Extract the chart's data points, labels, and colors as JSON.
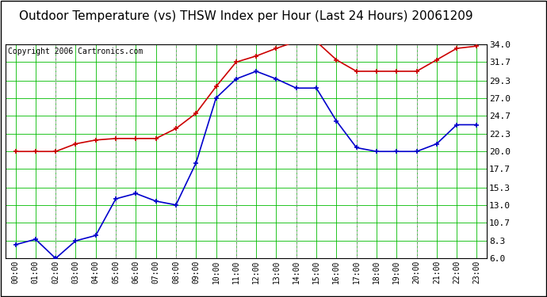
{
  "title": "Outdoor Temperature (vs) THSW Index per Hour (Last 24 Hours) 20061209",
  "copyright": "Copyright 2006 Cartronics.com",
  "hours": [
    "00:00",
    "01:00",
    "02:00",
    "03:00",
    "04:00",
    "05:00",
    "06:00",
    "07:00",
    "08:00",
    "09:00",
    "10:00",
    "11:00",
    "12:00",
    "13:00",
    "14:00",
    "15:00",
    "16:00",
    "17:00",
    "18:00",
    "19:00",
    "20:00",
    "21:00",
    "22:00",
    "23:00"
  ],
  "temp_red": [
    20.0,
    20.0,
    20.0,
    21.0,
    21.5,
    21.7,
    21.7,
    21.7,
    23.0,
    25.0,
    28.5,
    31.7,
    32.5,
    33.5,
    34.4,
    34.4,
    32.0,
    30.5,
    30.5,
    30.5,
    30.5,
    32.0,
    33.5,
    33.8
  ],
  "temp_blue": [
    7.8,
    8.5,
    6.0,
    8.3,
    9.0,
    13.8,
    14.5,
    13.5,
    13.0,
    18.5,
    27.0,
    29.5,
    30.5,
    29.5,
    28.3,
    28.3,
    24.0,
    20.5,
    20.0,
    20.0,
    20.0,
    21.0,
    23.5,
    23.5
  ],
  "red_color": "#cc0000",
  "blue_color": "#0000cc",
  "green_grid_color": "#00bb00",
  "dashed_grid_color": "#aaaaaa",
  "background_color": "#ffffff",
  "border_color": "#000000",
  "yticks": [
    6.0,
    8.3,
    10.7,
    13.0,
    15.3,
    17.7,
    20.0,
    22.3,
    24.7,
    27.0,
    29.3,
    31.7,
    34.0
  ],
  "ymin": 6.0,
  "ymax": 34.0,
  "title_fontsize": 11,
  "copyright_fontsize": 7,
  "tick_fontsize": 8
}
